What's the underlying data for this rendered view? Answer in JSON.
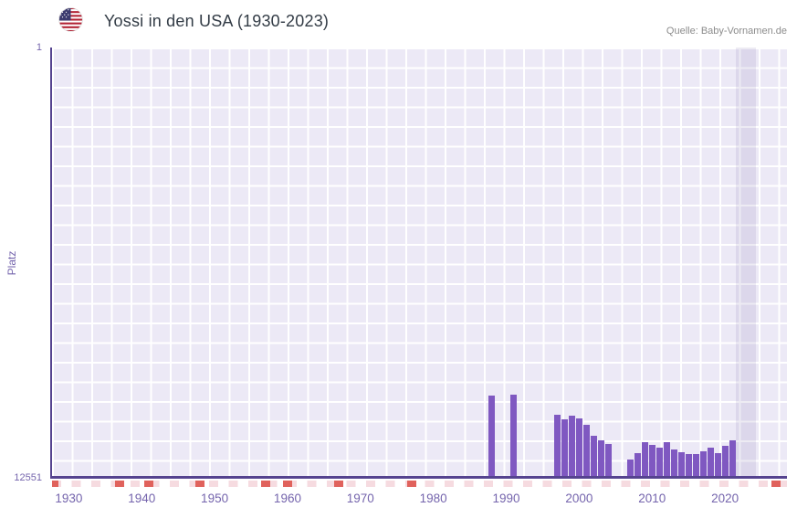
{
  "header": {
    "title": "Yossi in den USA (1930-2023)",
    "source": "Quelle: Baby-Vornamen.de"
  },
  "chart_data": {
    "type": "bar",
    "title": "Yossi in den USA (1930-2023)",
    "xlabel": "",
    "ylabel": "Platz",
    "y_axis_inverted": true,
    "y_domain": [
      1,
      12551
    ],
    "y_ticks": [
      "1",
      "12551"
    ],
    "x_domain": [
      1927.7,
      2028.5
    ],
    "x_ticks": [
      1930,
      1940,
      1950,
      1960,
      1970,
      1980,
      1990,
      2000,
      2010,
      2020
    ],
    "grid": true,
    "legend": false,
    "bars": [
      {
        "year": 1988,
        "rank": 10150
      },
      {
        "year": 1991,
        "rank": 10130
      },
      {
        "year": 1997,
        "rank": 10710
      },
      {
        "year": 1998,
        "rank": 10845
      },
      {
        "year": 1999,
        "rank": 10740
      },
      {
        "year": 2000,
        "rank": 10820
      },
      {
        "year": 2001,
        "rank": 11005
      },
      {
        "year": 2002,
        "rank": 11325
      },
      {
        "year": 2003,
        "rank": 11460
      },
      {
        "year": 2004,
        "rank": 11565
      },
      {
        "year": 2007,
        "rank": 12020
      },
      {
        "year": 2008,
        "rank": 11830
      },
      {
        "year": 2009,
        "rank": 11510
      },
      {
        "year": 2010,
        "rank": 11590
      },
      {
        "year": 2011,
        "rank": 11670
      },
      {
        "year": 2012,
        "rank": 11510
      },
      {
        "year": 2013,
        "rank": 11725
      },
      {
        "year": 2014,
        "rank": 11805
      },
      {
        "year": 2015,
        "rank": 11860
      },
      {
        "year": 2016,
        "rank": 11860
      },
      {
        "year": 2017,
        "rank": 11780
      },
      {
        "year": 2018,
        "rank": 11670
      },
      {
        "year": 2019,
        "rank": 11830
      },
      {
        "year": 2020,
        "rank": 11620
      },
      {
        "year": 2021,
        "rank": 11460
      }
    ],
    "baseline_marks_years": [
      1928,
      1937,
      1941,
      1948,
      1957,
      1960,
      1967,
      1977,
      2027
    ],
    "highlight_band": {
      "from_year": 2021.5,
      "to_year": 2024.3
    },
    "colors": {
      "bar": "#7f58c1",
      "axis": "#55438f",
      "tick_label": "#7565ad",
      "plot_background": "#ece9f6",
      "grid_line": "#ffffff",
      "highlight_band": "#6e5aa01f",
      "mark_red": "#e0625c",
      "mark_pink": "#f6dbe0"
    }
  }
}
